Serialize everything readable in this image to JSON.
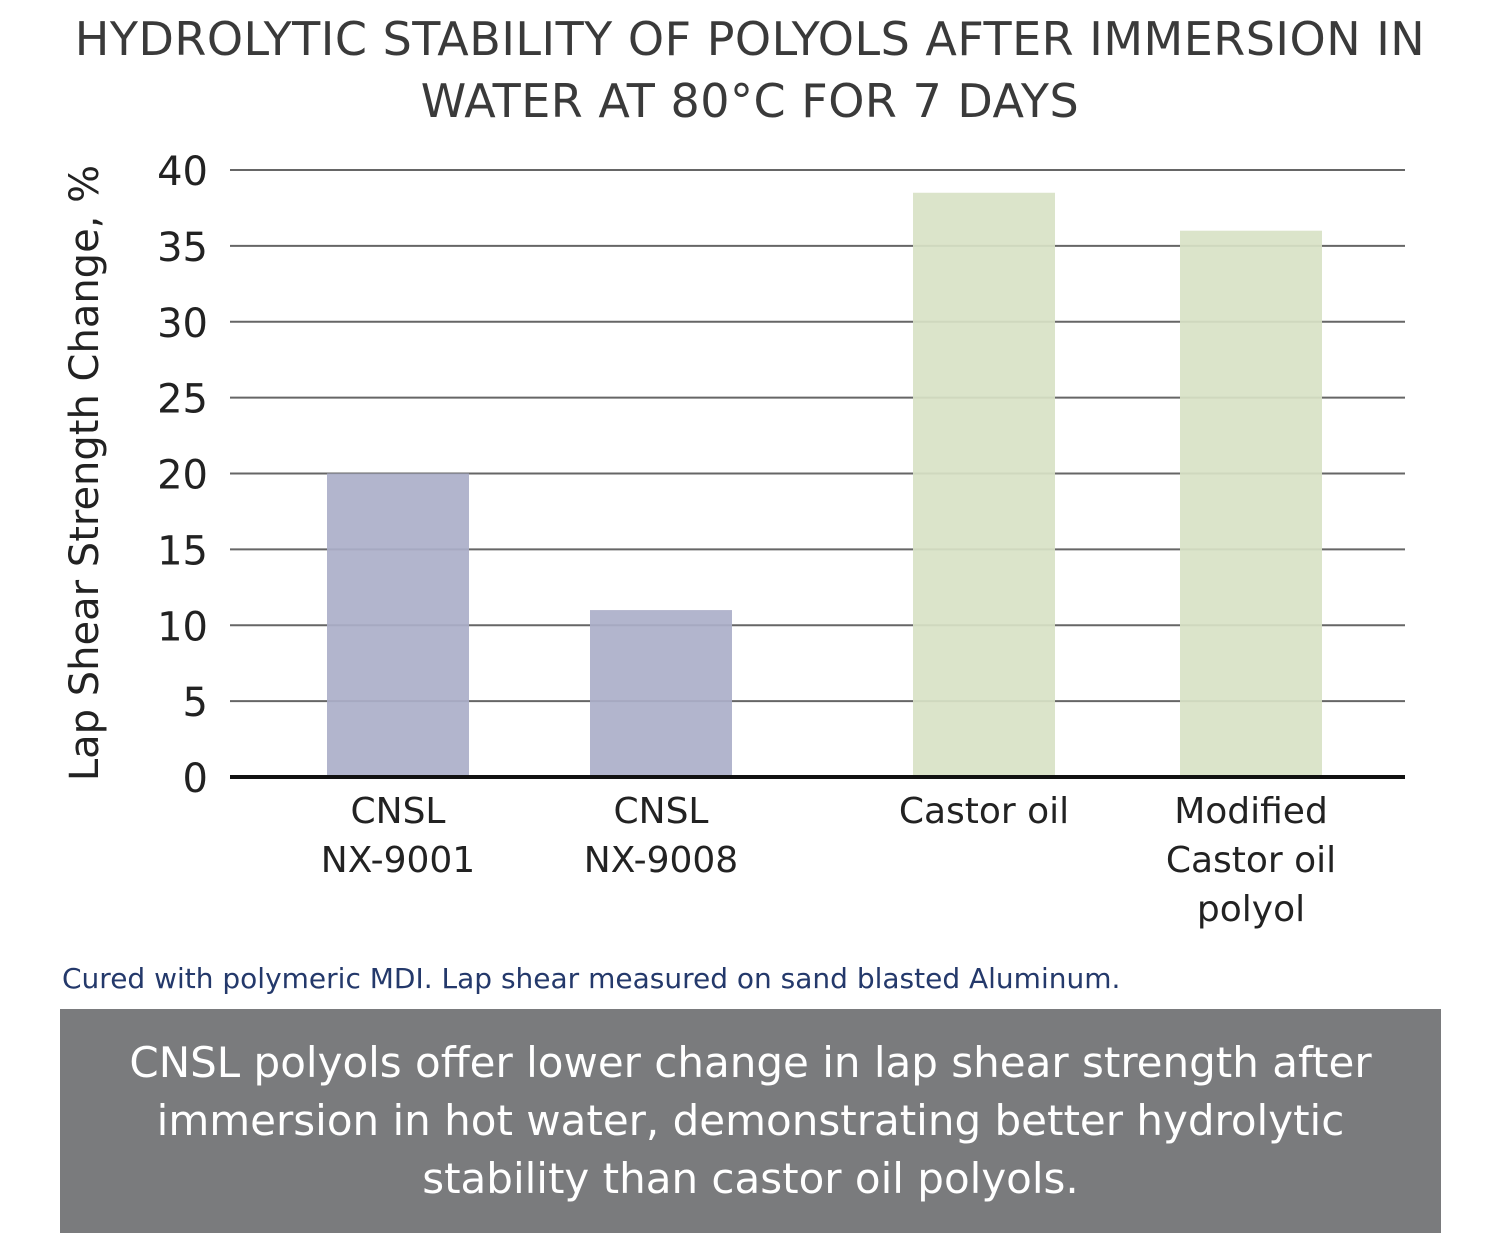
{
  "chart_data": {
    "type": "bar",
    "title": "HYDROLYTIC STABILITY OF POLYOLS AFTER IMMERSION IN WATER AT 80°C FOR 7 DAYS",
    "xlabel": "",
    "ylabel": "Lap Shear Strength Change, %",
    "ylim": [
      0,
      40
    ],
    "yticks": [
      "0",
      "5",
      "10",
      "15",
      "20",
      "25",
      "30",
      "35",
      "40"
    ],
    "grid": true,
    "categories": [
      [
        "CNSL",
        "NX-9001"
      ],
      [
        "CNSL",
        "NX-9008"
      ],
      [
        "Castor oil"
      ],
      [
        "Modified",
        "Castor oil",
        "polyol"
      ]
    ],
    "values": [
      20,
      11,
      38.5,
      36
    ],
    "colors": [
      "#abafc9",
      "#abafc9",
      "#d8e2c5",
      "#d8e2c5"
    ]
  },
  "footnote": "Cured with polymeric MDI. Lap shear measured on sand blasted Aluminum.",
  "callout": "CNSL polyols offer lower change in lap shear strength after immersion in hot water, demonstrating better hydrolytic stability than castor oil polyols."
}
